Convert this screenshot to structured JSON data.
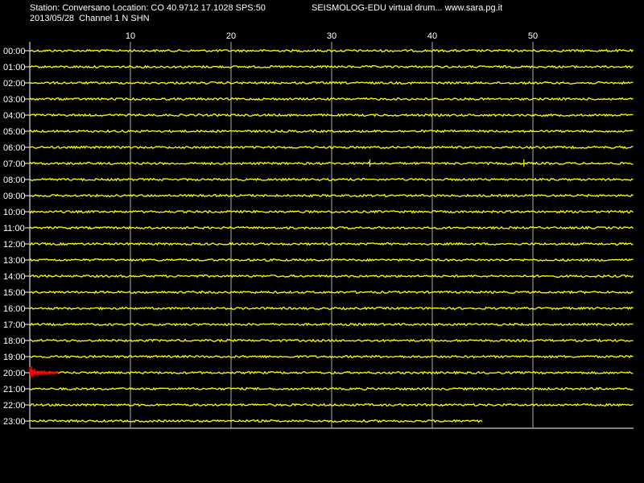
{
  "header": {
    "station_line": "Station: Conversano Location: CO 40.9712 17.1028 SPS:50",
    "date_line": "2013/05/28  Channel 1 N SHN",
    "title_right": "SEISMOLOG-EDU virtual drum... www.sara.pg.it"
  },
  "colors": {
    "background": "#000000",
    "trace": "#ffff00",
    "event": "#ff0000",
    "grid": "#ffffff"
  },
  "chart_data": {
    "type": "line",
    "xlabel": "",
    "ylabel": "",
    "xlim": [
      0,
      60
    ],
    "x_ticks": [
      10,
      20,
      30,
      40,
      50
    ],
    "grid": true,
    "rows": [
      "00:00",
      "01:00",
      "02:00",
      "03:00",
      "04:00",
      "05:00",
      "06:00",
      "07:00",
      "08:00",
      "09:00",
      "10:00",
      "11:00",
      "12:00",
      "13:00",
      "14:00",
      "15:00",
      "16:00",
      "17:00",
      "18:00",
      "19:00",
      "20:00",
      "21:00",
      "22:00",
      "23:00"
    ],
    "trace_end_minute": [
      60,
      60,
      60,
      60,
      60,
      60,
      60,
      60,
      60,
      60,
      60,
      60,
      60,
      60,
      60,
      60,
      60,
      60,
      60,
      60,
      60,
      60,
      60,
      45
    ],
    "events": [
      {
        "row": "20:00",
        "start_minute": 0,
        "end_minute": 2.8,
        "color": "#ff0000"
      }
    ],
    "spikes": [
      {
        "row": "07:00",
        "minute": 33.8
      },
      {
        "row": "07:00",
        "minute": 49.1
      }
    ]
  }
}
